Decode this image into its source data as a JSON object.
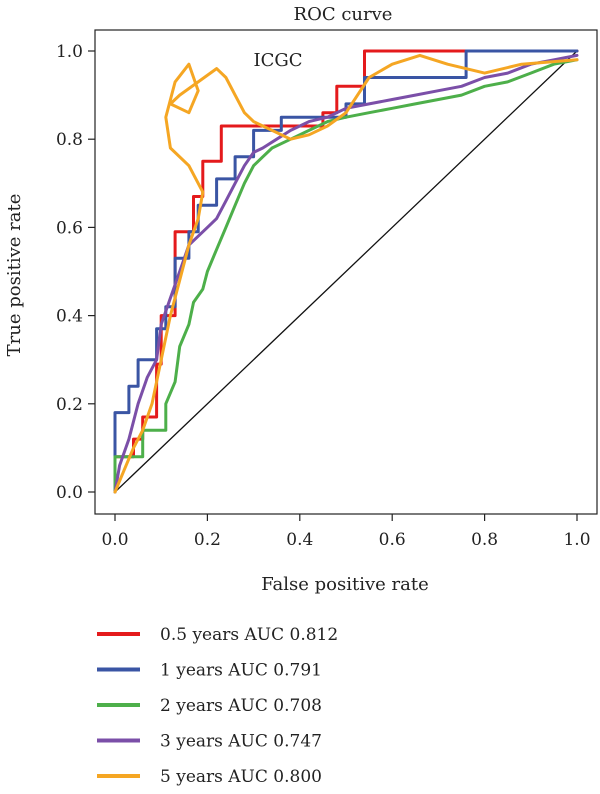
{
  "chart_data": {
    "type": "line",
    "title": "ROC curve",
    "annotation": "ICGC",
    "xlabel": "False positive rate",
    "ylabel": "True positive rate",
    "xlim": [
      0,
      1
    ],
    "ylim": [
      0,
      1
    ],
    "xticks": [
      "0.0",
      "0.2",
      "0.4",
      "0.6",
      "0.8",
      "1.0"
    ],
    "yticks": [
      "0.0",
      "0.2",
      "0.4",
      "0.6",
      "0.8",
      "1.0"
    ],
    "grid": false,
    "legend_position": "bottom-left",
    "diagonal_reference": true,
    "series": [
      {
        "name": "0.5 years AUC 0.812",
        "color": "#e41a1c",
        "x": [
          0.0,
          0.0,
          0.04,
          0.04,
          0.06,
          0.06,
          0.09,
          0.09,
          0.1,
          0.1,
          0.13,
          0.13,
          0.17,
          0.17,
          0.19,
          0.19,
          0.23,
          0.23,
          0.45,
          0.45,
          0.48,
          0.48,
          0.54,
          0.54,
          0.77,
          0.77,
          1.0
        ],
        "y": [
          0.0,
          0.08,
          0.08,
          0.12,
          0.12,
          0.17,
          0.17,
          0.29,
          0.29,
          0.4,
          0.4,
          0.59,
          0.59,
          0.67,
          0.67,
          0.75,
          0.75,
          0.83,
          0.83,
          0.86,
          0.86,
          0.92,
          0.92,
          1.0,
          1.0,
          1.0,
          1.0
        ]
      },
      {
        "name": "1 years AUC 0.791",
        "color": "#3a55a4",
        "x": [
          0.0,
          0.0,
          0.03,
          0.03,
          0.05,
          0.05,
          0.09,
          0.09,
          0.11,
          0.11,
          0.13,
          0.13,
          0.16,
          0.16,
          0.18,
          0.18,
          0.22,
          0.22,
          0.26,
          0.26,
          0.3,
          0.3,
          0.36,
          0.36,
          0.5,
          0.5,
          0.54,
          0.54,
          0.61,
          0.61,
          0.76,
          0.76,
          1.0
        ],
        "y": [
          0.0,
          0.18,
          0.18,
          0.24,
          0.24,
          0.3,
          0.3,
          0.37,
          0.37,
          0.42,
          0.42,
          0.53,
          0.53,
          0.59,
          0.59,
          0.65,
          0.65,
          0.71,
          0.71,
          0.76,
          0.76,
          0.82,
          0.82,
          0.85,
          0.85,
          0.88,
          0.88,
          0.94,
          0.94,
          0.94,
          0.94,
          1.0,
          1.0
        ]
      },
      {
        "name": "2 years AUC 0.708",
        "color": "#4daf4a",
        "x": [
          0.0,
          0.0,
          0.06,
          0.06,
          0.11,
          0.11,
          0.13,
          0.14,
          0.16,
          0.17,
          0.19,
          0.2,
          0.22,
          0.24,
          0.26,
          0.28,
          0.3,
          0.32,
          0.34,
          0.38,
          0.42,
          0.46,
          0.5,
          0.55,
          0.6,
          0.65,
          0.7,
          0.75,
          0.8,
          0.85,
          0.9,
          0.95,
          1.0
        ],
        "y": [
          0.0,
          0.08,
          0.08,
          0.14,
          0.14,
          0.2,
          0.25,
          0.33,
          0.38,
          0.43,
          0.46,
          0.5,
          0.55,
          0.6,
          0.65,
          0.7,
          0.74,
          0.76,
          0.78,
          0.8,
          0.82,
          0.84,
          0.85,
          0.86,
          0.87,
          0.88,
          0.89,
          0.9,
          0.92,
          0.93,
          0.95,
          0.97,
          0.98
        ]
      },
      {
        "name": "3 years AUC 0.747",
        "color": "#7b4fa8",
        "x": [
          0.0,
          0.01,
          0.03,
          0.05,
          0.07,
          0.09,
          0.1,
          0.12,
          0.14,
          0.16,
          0.18,
          0.2,
          0.22,
          0.24,
          0.26,
          0.28,
          0.3,
          0.32,
          0.35,
          0.38,
          0.42,
          0.46,
          0.5,
          0.55,
          0.6,
          0.65,
          0.7,
          0.75,
          0.8,
          0.85,
          0.9,
          0.95,
          1.0
        ],
        "y": [
          0.0,
          0.06,
          0.12,
          0.2,
          0.26,
          0.3,
          0.38,
          0.44,
          0.5,
          0.56,
          0.58,
          0.6,
          0.62,
          0.66,
          0.7,
          0.74,
          0.77,
          0.78,
          0.8,
          0.82,
          0.84,
          0.85,
          0.87,
          0.88,
          0.89,
          0.9,
          0.91,
          0.92,
          0.94,
          0.95,
          0.97,
          0.98,
          0.99
        ]
      },
      {
        "name": "5 years AUC 0.800",
        "color": "#f5a623",
        "x": [
          0.0,
          0.02,
          0.04,
          0.06,
          0.08,
          0.1,
          0.12,
          0.14,
          0.16,
          0.18,
          0.19,
          0.16,
          0.12,
          0.11,
          0.13,
          0.16,
          0.18,
          0.16,
          0.12,
          0.14,
          0.18,
          0.22,
          0.24,
          0.26,
          0.28,
          0.3,
          0.34,
          0.38,
          0.42,
          0.46,
          0.5,
          0.55,
          0.6,
          0.66,
          0.72,
          0.8,
          0.88,
          1.0
        ],
        "y": [
          0.0,
          0.05,
          0.1,
          0.14,
          0.2,
          0.3,
          0.4,
          0.48,
          0.56,
          0.62,
          0.68,
          0.74,
          0.78,
          0.85,
          0.93,
          0.97,
          0.91,
          0.86,
          0.88,
          0.9,
          0.93,
          0.96,
          0.94,
          0.9,
          0.86,
          0.84,
          0.82,
          0.8,
          0.81,
          0.83,
          0.86,
          0.94,
          0.97,
          0.99,
          0.97,
          0.95,
          0.97,
          0.98
        ]
      }
    ]
  }
}
